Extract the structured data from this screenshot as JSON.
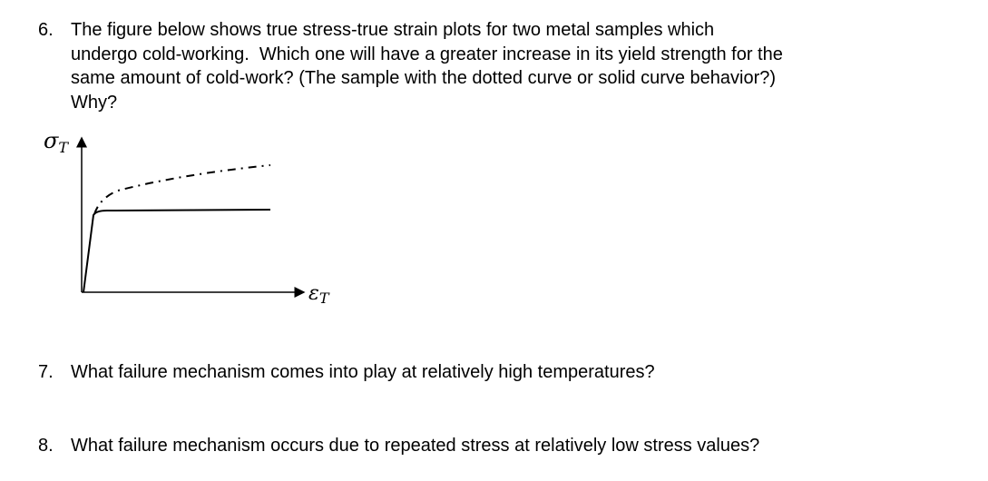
{
  "questions": [
    {
      "number": "6.",
      "lines": [
        "The figure below shows true stress-true strain plots for two metal samples which",
        "undergo cold-working.  Which one will have a greater increase in its yield strength for the",
        "same amount of cold-work? (The sample with the dotted curve or solid curve behavior?)",
        "Why?"
      ]
    },
    {
      "number": "7.",
      "lines": [
        "What failure mechanism comes into play at relatively high temperatures?"
      ]
    },
    {
      "number": "8.",
      "lines": [
        "What failure mechanism occurs due to repeated stress at relatively low stress values?"
      ]
    }
  ],
  "figure": {
    "y_label": {
      "symbol": "σ",
      "subscript": "T"
    },
    "x_label": {
      "symbol": "ε",
      "subscript": "T"
    }
  }
}
